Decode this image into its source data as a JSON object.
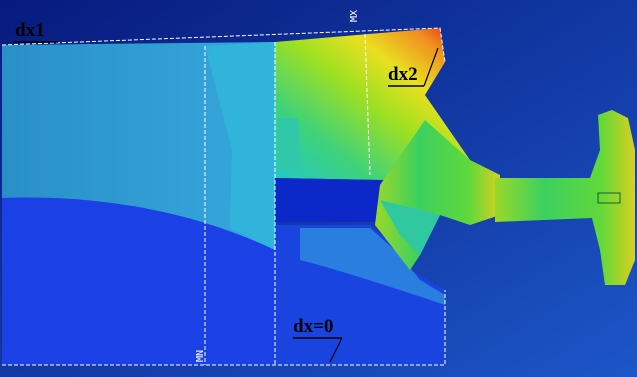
{
  "annotations": [
    "dx1",
    "dx2",
    "dx=0"
  ],
  "markers": [
    "MX",
    "MN"
  ]
}
